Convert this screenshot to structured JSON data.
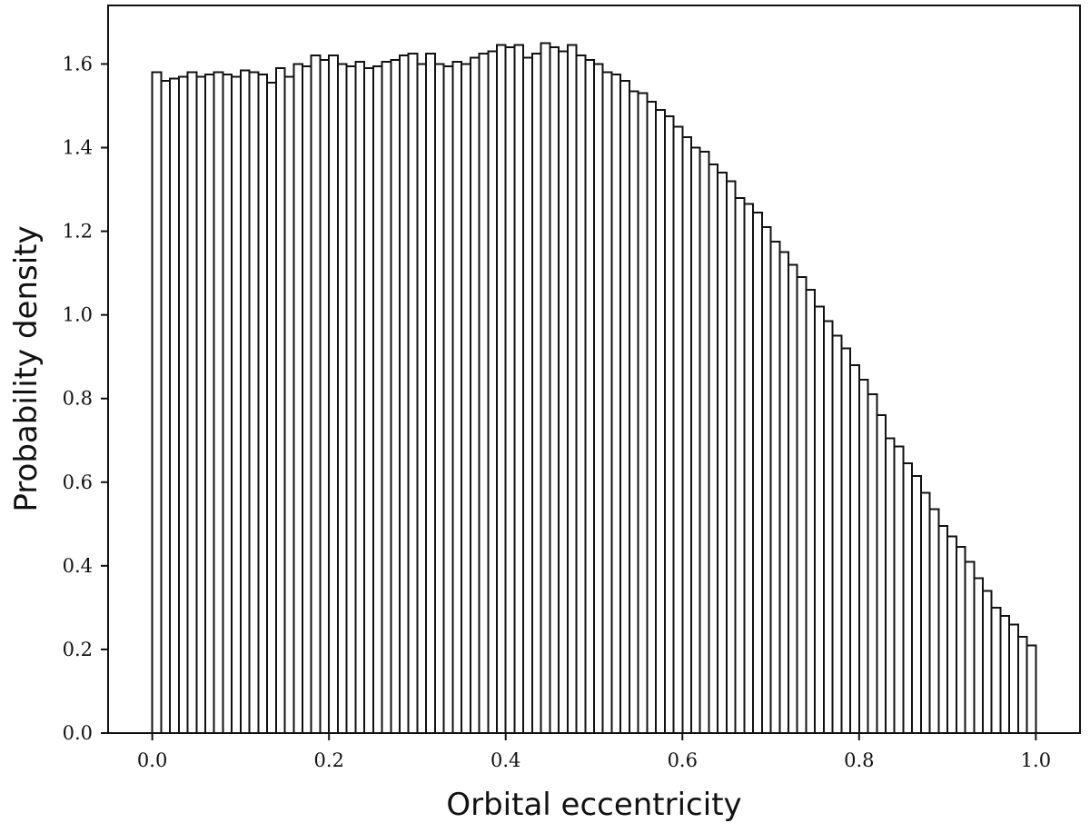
{
  "chart_data": {
    "type": "histogram",
    "xlabel": "Orbital eccentricity",
    "ylabel": "Probability density",
    "xlim": [
      -0.05,
      1.05
    ],
    "ylim": [
      0.0,
      1.74
    ],
    "xticks": [
      0.0,
      0.2,
      0.4,
      0.6,
      0.8,
      1.0
    ],
    "xtick_labels": [
      "0.0",
      "0.2",
      "0.4",
      "0.6",
      "0.8",
      "1.0"
    ],
    "yticks": [
      0.0,
      0.2,
      0.4,
      0.6,
      0.8,
      1.0,
      1.2,
      1.4,
      1.6
    ],
    "ytick_labels": [
      "0.0",
      "0.2",
      "0.4",
      "0.6",
      "0.8",
      "1.0",
      "1.2",
      "1.4",
      "1.6"
    ],
    "histtype": "step",
    "line_color": "#111111",
    "grid": false,
    "legend": "none",
    "bin_edges_range": [
      0.0,
      1.0
    ],
    "bin_count": 100,
    "density": [
      1.58,
      1.56,
      1.565,
      1.57,
      1.58,
      1.57,
      1.575,
      1.58,
      1.575,
      1.57,
      1.585,
      1.58,
      1.575,
      1.555,
      1.59,
      1.57,
      1.6,
      1.595,
      1.62,
      1.61,
      1.62,
      1.6,
      1.595,
      1.605,
      1.59,
      1.595,
      1.605,
      1.61,
      1.62,
      1.625,
      1.6,
      1.625,
      1.6,
      1.595,
      1.605,
      1.6,
      1.615,
      1.625,
      1.63,
      1.645,
      1.64,
      1.645,
      1.615,
      1.625,
      1.65,
      1.64,
      1.63,
      1.645,
      1.62,
      1.61,
      1.6,
      1.58,
      1.575,
      1.56,
      1.535,
      1.53,
      1.51,
      1.49,
      1.475,
      1.45,
      1.425,
      1.4,
      1.39,
      1.36,
      1.34,
      1.32,
      1.28,
      1.265,
      1.245,
      1.21,
      1.175,
      1.15,
      1.12,
      1.09,
      1.06,
      1.02,
      0.985,
      0.95,
      0.92,
      0.88,
      0.845,
      0.81,
      0.76,
      0.705,
      0.685,
      0.645,
      0.615,
      0.575,
      0.535,
      0.495,
      0.47,
      0.445,
      0.41,
      0.37,
      0.34,
      0.3,
      0.28,
      0.26,
      0.23,
      0.21
    ]
  }
}
